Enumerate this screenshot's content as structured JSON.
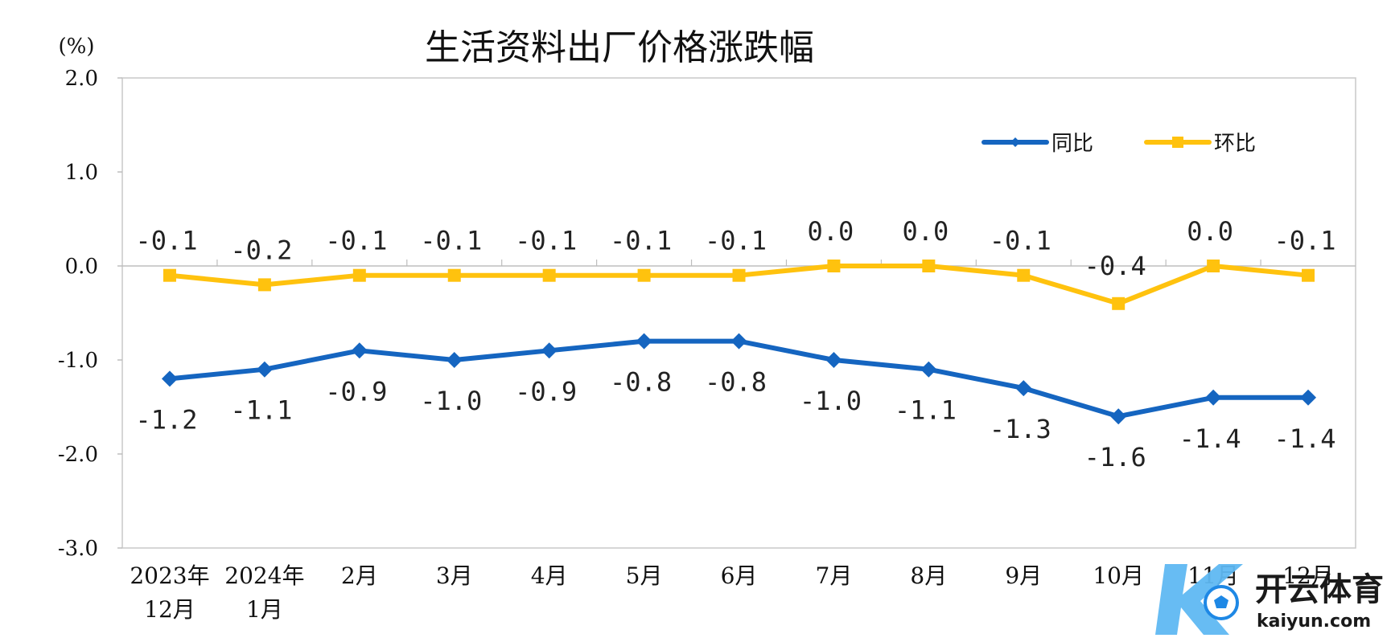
{
  "colors": {
    "yoy": "#1565C0",
    "mom": "#FFC20E"
  },
  "watermark": {
    "brand": "开云体育",
    "domain": "kaiyun.com"
  },
  "chart_data": {
    "type": "line",
    "title": "生活资料出厂价格涨跌幅",
    "unit": "(%)",
    "categories": [
      [
        "2023年",
        "12月"
      ],
      [
        "2024年",
        "1月"
      ],
      [
        "2月"
      ],
      [
        "3月"
      ],
      [
        "4月"
      ],
      [
        "5月"
      ],
      [
        "6月"
      ],
      [
        "7月"
      ],
      [
        "8月"
      ],
      [
        "9月"
      ],
      [
        "10月"
      ],
      [
        "11月"
      ],
      [
        "12月"
      ]
    ],
    "ylim": [
      -3.0,
      2.0
    ],
    "yticks": [
      "2.0",
      "1.0",
      "0.0",
      "-1.0",
      "-2.0",
      "-3.0"
    ],
    "ytick_values": [
      2.0,
      1.0,
      0.0,
      -1.0,
      -2.0,
      -3.0
    ],
    "legend_position": "top-right",
    "series": [
      {
        "key": "yoy",
        "name": "同比",
        "marker": "diamond",
        "values": [
          -1.2,
          -1.1,
          -0.9,
          -1.0,
          -0.9,
          -0.8,
          -0.8,
          -1.0,
          -1.1,
          -1.3,
          -1.6,
          -1.4,
          -1.4
        ],
        "labels": [
          "-1.2",
          "-1.1",
          "-0.9",
          "-1.0",
          "-0.9",
          "-0.8",
          "-0.8",
          "-1.0",
          "-1.1",
          "-1.3",
          "-1.6",
          "-1.4",
          "-1.4"
        ]
      },
      {
        "key": "mom",
        "name": "环比",
        "marker": "square",
        "values": [
          -0.1,
          -0.2,
          -0.1,
          -0.1,
          -0.1,
          -0.1,
          -0.1,
          0.0,
          0.0,
          -0.1,
          -0.4,
          0.0,
          -0.1
        ],
        "labels": [
          "-0.1",
          "-0.2",
          "-0.1",
          "-0.1",
          "-0.1",
          "-0.1",
          "-0.1",
          "0.0",
          "0.0",
          "-0.1",
          "-0.4",
          "0.0",
          "-0.1"
        ]
      }
    ]
  }
}
